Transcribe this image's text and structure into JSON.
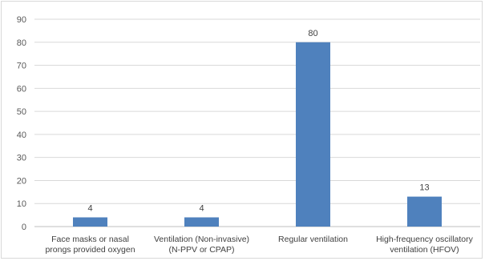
{
  "chart_data": {
    "type": "bar",
    "categories": [
      [
        "Face masks or nasal",
        "prongs provided oxygen"
      ],
      [
        "Ventilation (Non-invasive)",
        "(N-PPV or CPAP)"
      ],
      [
        "Regular ventilation"
      ],
      [
        "High-frequency oscillatory",
        "ventilation (HFOV)"
      ]
    ],
    "values": [
      4,
      4,
      80,
      13
    ],
    "data_labels": [
      "4",
      "4",
      "80",
      "13"
    ],
    "ylim": [
      0,
      90
    ],
    "yticks": [
      0,
      10,
      20,
      30,
      40,
      50,
      60,
      70,
      80,
      90
    ],
    "grid": true,
    "legend": "none",
    "colors": {
      "bar": "#4f81bd",
      "grid": "#d9d9d9",
      "axis": "#bfbfbf"
    }
  }
}
